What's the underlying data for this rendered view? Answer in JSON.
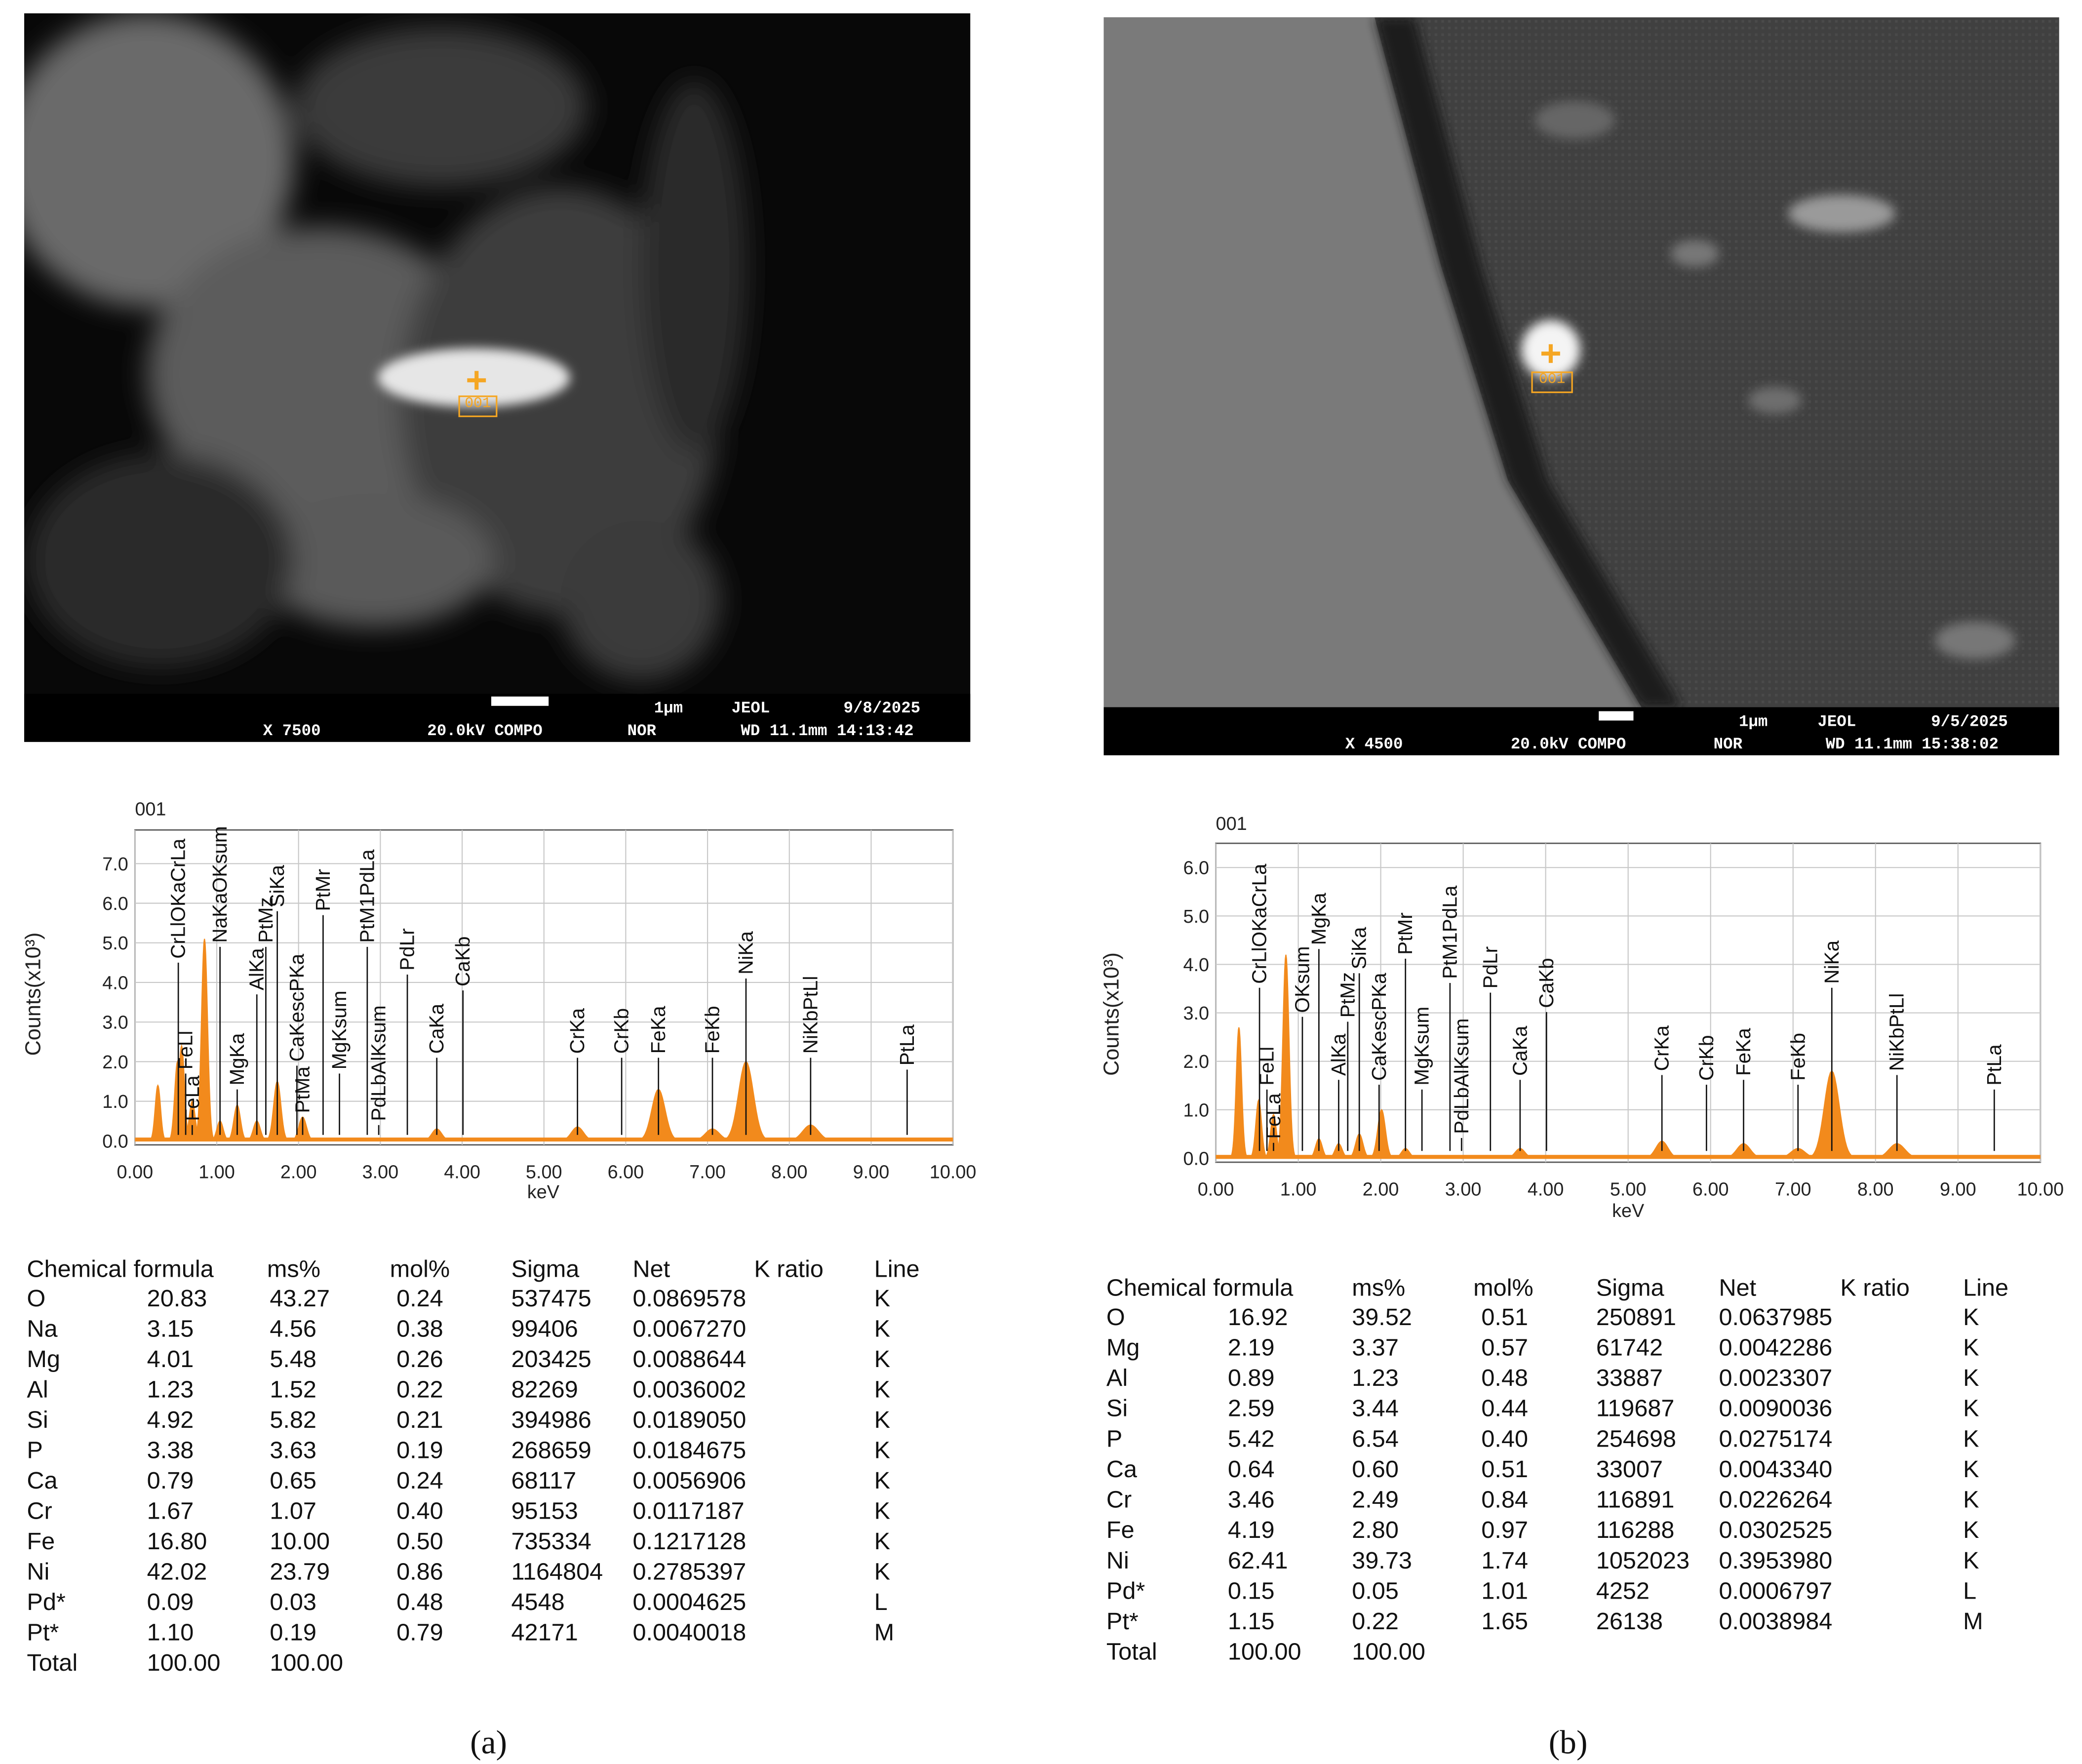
{
  "panels": [
    {
      "image": {
        "marker": "001",
        "scale": "1μm",
        "maker": "JEOL",
        "date": "9/8/2025",
        "magnification": "X 7500",
        "voltage": "20.0kV COMPO",
        "mode": "NOR",
        "wd_time": "WD 11.1mm 14:13:42"
      },
      "spectrum": {
        "type": "spectrum",
        "title": "001",
        "xlabel": "keV",
        "ylabel": "Counts(x10³)",
        "color": "#f28a1c",
        "xlim": [
          0,
          10
        ],
        "ylim": [
          0,
          7.85
        ],
        "xticks": [
          {
            "value": 0,
            "label": "0.00"
          },
          {
            "value": 1,
            "label": "1.00"
          },
          {
            "value": 2,
            "label": "2.00"
          },
          {
            "value": 3,
            "label": "3.00"
          },
          {
            "value": 4,
            "label": "4.00"
          },
          {
            "value": 5,
            "label": "5.00"
          },
          {
            "value": 6,
            "label": "6.00"
          },
          {
            "value": 7,
            "label": "7.00"
          },
          {
            "value": 8,
            "label": "8.00"
          },
          {
            "value": 9,
            "label": "9.00"
          },
          {
            "value": 10,
            "label": "10.00"
          }
        ],
        "yticks": [
          {
            "value": 0,
            "label": "0.0"
          },
          {
            "value": 1,
            "label": "1.0"
          },
          {
            "value": 2,
            "label": "2.0"
          },
          {
            "value": 3,
            "label": "3.0"
          },
          {
            "value": 4,
            "label": "4.0"
          },
          {
            "value": 5,
            "label": "5.0"
          },
          {
            "value": 6,
            "label": "6.0"
          },
          {
            "value": 7,
            "label": "7.0"
          }
        ],
        "peaks": [
          {
            "x": 0.28,
            "height": 1.4
          },
          {
            "x": 0.52,
            "height": 2.0
          },
          {
            "x": 0.57,
            "height": 2.4
          },
          {
            "x": 0.7,
            "height": 1.0
          },
          {
            "x": 0.85,
            "height": 5.1
          },
          {
            "x": 1.04,
            "height": 0.5
          },
          {
            "x": 1.25,
            "height": 0.9
          },
          {
            "x": 1.49,
            "height": 0.5
          },
          {
            "x": 1.74,
            "height": 1.5
          },
          {
            "x": 2.05,
            "height": 0.6
          },
          {
            "x": 3.69,
            "height": 0.3
          },
          {
            "x": 5.41,
            "height": 0.35
          },
          {
            "x": 6.4,
            "height": 1.3
          },
          {
            "x": 7.06,
            "height": 0.3
          },
          {
            "x": 7.47,
            "height": 2.0
          },
          {
            "x": 8.26,
            "height": 0.4
          }
        ],
        "markers": [
          {
            "label": "CrLlOKaCrLa",
            "x": 0.53
          },
          {
            "label": "FeLl",
            "x": 0.62
          },
          {
            "label": "FeLa",
            "x": 0.7
          },
          {
            "label": "NaKaOKsum",
            "x": 1.04
          },
          {
            "label": "MgKa",
            "x": 1.25
          },
          {
            "label": "AlKa",
            "x": 1.49
          },
          {
            "label": "PtMz",
            "x": 1.6
          },
          {
            "label": "SiKa",
            "x": 1.74
          },
          {
            "label": "CaKescPKa",
            "x": 1.98
          },
          {
            "label": "PtMa",
            "x": 2.05
          },
          {
            "label": "PtMr",
            "x": 2.3
          },
          {
            "label": "MgKsum",
            "x": 2.5
          },
          {
            "label": "PtM1PdLa",
            "x": 2.84
          },
          {
            "label": "PdLbAlKsum",
            "x": 2.98
          },
          {
            "label": "PdLr",
            "x": 3.33
          },
          {
            "label": "CaKa",
            "x": 3.69
          },
          {
            "label": "CaKb",
            "x": 4.01
          },
          {
            "label": "CrKa",
            "x": 5.41
          },
          {
            "label": "CrKb",
            "x": 5.95
          },
          {
            "label": "FeKa",
            "x": 6.4
          },
          {
            "label": "FeKb",
            "x": 7.06
          },
          {
            "label": "NiKa",
            "x": 7.47
          },
          {
            "label": "NiKbPtLl",
            "x": 8.26
          },
          {
            "label": "PtLa",
            "x": 9.44
          }
        ]
      },
      "table": {
        "header": [
          "Chemical formula",
          "ms%",
          "mol%",
          "Sigma",
          "Net",
          "K ratio",
          "Line"
        ],
        "rows": [
          [
            "O",
            "20.83",
            "43.27",
            "0.24",
            "537475",
            "0.0869578",
            "K"
          ],
          [
            "Na",
            "3.15",
            "4.56",
            "0.38",
            "99406",
            "0.0067270",
            "K"
          ],
          [
            "Mg",
            "4.01",
            "5.48",
            "0.26",
            "203425",
            "0.0088644",
            "K"
          ],
          [
            "Al",
            "1.23",
            "1.52",
            "0.22",
            "82269",
            "0.0036002",
            "K"
          ],
          [
            "Si",
            "4.92",
            "5.82",
            "0.21",
            "394986",
            "0.0189050",
            "K"
          ],
          [
            "P",
            "3.38",
            "3.63",
            "0.19",
            "268659",
            "0.0184675",
            "K"
          ],
          [
            "Ca",
            "0.79",
            "0.65",
            "0.24",
            "68117",
            "0.0056906",
            "K"
          ],
          [
            "Cr",
            "1.67",
            "1.07",
            "0.40",
            "95153",
            "0.0117187",
            "K"
          ],
          [
            "Fe",
            "16.80",
            "10.00",
            "0.50",
            "735334",
            "0.1217128",
            "K"
          ],
          [
            "Ni",
            "42.02",
            "23.79",
            "0.86",
            "1164804",
            "0.2785397",
            "K"
          ],
          [
            "Pd*",
            "0.09",
            "0.03",
            "0.48",
            "4548",
            "0.0004625",
            "L"
          ],
          [
            "Pt*",
            "1.10",
            "0.19",
            "0.79",
            "42171",
            "0.0040018",
            "M"
          ],
          [
            "Total",
            "100.00",
            "100.00"
          ]
        ]
      },
      "caption": "(a)"
    },
    {
      "image": {
        "marker": "001",
        "scale": "1μm",
        "maker": "JEOL",
        "date": "9/5/2025",
        "magnification": "X 4500",
        "voltage": "20.0kV COMPO",
        "mode": "NOR",
        "wd_time": "WD 11.1mm 15:38:02"
      },
      "spectrum": {
        "type": "spectrum",
        "title": "001",
        "xlabel": "keV",
        "ylabel": "Counts(x10³)",
        "color": "#f28a1c",
        "xlim": [
          0,
          10
        ],
        "ylim": [
          0,
          6.5
        ],
        "xticks": [
          {
            "value": 0,
            "label": "0.00"
          },
          {
            "value": 1,
            "label": "1.00"
          },
          {
            "value": 2,
            "label": "2.00"
          },
          {
            "value": 3,
            "label": "3.00"
          },
          {
            "value": 4,
            "label": "4.00"
          },
          {
            "value": 5,
            "label": "5.00"
          },
          {
            "value": 6,
            "label": "6.00"
          },
          {
            "value": 7,
            "label": "7.00"
          },
          {
            "value": 8,
            "label": "8.00"
          },
          {
            "value": 9,
            "label": "9.00"
          },
          {
            "value": 10,
            "label": "10.00"
          }
        ],
        "yticks": [
          {
            "value": 0,
            "label": "0.0"
          },
          {
            "value": 1,
            "label": "1.0"
          },
          {
            "value": 2,
            "label": "2.0"
          },
          {
            "value": 3,
            "label": "3.0"
          },
          {
            "value": 4,
            "label": "4.0"
          },
          {
            "value": 5,
            "label": "5.0"
          },
          {
            "value": 6,
            "label": "6.0"
          }
        ],
        "peaks": [
          {
            "x": 0.28,
            "height": 2.7
          },
          {
            "x": 0.52,
            "height": 1.2
          },
          {
            "x": 0.7,
            "height": 0.9
          },
          {
            "x": 0.85,
            "height": 4.2
          },
          {
            "x": 1.25,
            "height": 0.4
          },
          {
            "x": 1.49,
            "height": 0.3
          },
          {
            "x": 1.74,
            "height": 0.5
          },
          {
            "x": 2.01,
            "height": 1.0
          },
          {
            "x": 2.3,
            "height": 0.2
          },
          {
            "x": 3.69,
            "height": 0.2
          },
          {
            "x": 5.41,
            "height": 0.35
          },
          {
            "x": 6.4,
            "height": 0.3
          },
          {
            "x": 7.06,
            "height": 0.2
          },
          {
            "x": 7.47,
            "height": 1.8
          },
          {
            "x": 8.26,
            "height": 0.3
          }
        ],
        "markers": [
          {
            "label": "CrLlOKaCrLa",
            "x": 0.53
          },
          {
            "label": "FeLl",
            "x": 0.62
          },
          {
            "label": "FeLa",
            "x": 0.7
          },
          {
            "label": "OKsum",
            "x": 1.05
          },
          {
            "label": "MgKa",
            "x": 1.25
          },
          {
            "label": "AlKa",
            "x": 1.49
          },
          {
            "label": "PtMz",
            "x": 1.6
          },
          {
            "label": "SiKa",
            "x": 1.74
          },
          {
            "label": "CaKescPKa",
            "x": 1.98
          },
          {
            "label": "PtMr",
            "x": 2.3
          },
          {
            "label": "MgKsum",
            "x": 2.5
          },
          {
            "label": "PtM1PdLa",
            "x": 2.84
          },
          {
            "label": "PdLbAlKsum",
            "x": 2.98
          },
          {
            "label": "PdLr",
            "x": 3.33
          },
          {
            "label": "CaKa",
            "x": 3.69
          },
          {
            "label": "CaKb",
            "x": 4.01
          },
          {
            "label": "CrKa",
            "x": 5.41
          },
          {
            "label": "CrKb",
            "x": 5.95
          },
          {
            "label": "FeKa",
            "x": 6.4
          },
          {
            "label": "FeKb",
            "x": 7.06
          },
          {
            "label": "NiKa",
            "x": 7.47
          },
          {
            "label": "NiKbPtLl",
            "x": 8.26
          },
          {
            "label": "PtLa",
            "x": 9.44
          }
        ]
      },
      "table": {
        "header": [
          "Chemical formula",
          "ms%",
          "mol%",
          "Sigma",
          "Net",
          "K ratio",
          "Line"
        ],
        "rows": [
          [
            "O",
            "16.92",
            "39.52",
            "0.51",
            "250891",
            "0.0637985",
            "K"
          ],
          [
            "Mg",
            "2.19",
            "3.37",
            "0.57",
            "61742",
            "0.0042286",
            "K"
          ],
          [
            "Al",
            "0.89",
            "1.23",
            "0.48",
            "33887",
            "0.0023307",
            "K"
          ],
          [
            "Si",
            "2.59",
            "3.44",
            "0.44",
            "119687",
            "0.0090036",
            "K"
          ],
          [
            "P",
            "5.42",
            "6.54",
            "0.40",
            "254698",
            "0.0275174",
            "K"
          ],
          [
            "Ca",
            "0.64",
            "0.60",
            "0.51",
            "33007",
            "0.0043340",
            "K"
          ],
          [
            "Cr",
            "3.46",
            "2.49",
            "0.84",
            "116891",
            "0.0226264",
            "K"
          ],
          [
            "Fe",
            "4.19",
            "2.80",
            "0.97",
            "116288",
            "0.0302525",
            "K"
          ],
          [
            "Ni",
            "62.41",
            "39.73",
            "1.74",
            "1052023",
            "0.3953980",
            "K"
          ],
          [
            "Pd*",
            "0.15",
            "0.05",
            "1.01",
            "4252",
            "0.0006797",
            "L"
          ],
          [
            "Pt*",
            "1.15",
            "0.22",
            "1.65",
            "26138",
            "0.0038984",
            "M"
          ],
          [
            "Total",
            "100.00",
            "100.00"
          ]
        ]
      },
      "caption": "(b)"
    }
  ]
}
